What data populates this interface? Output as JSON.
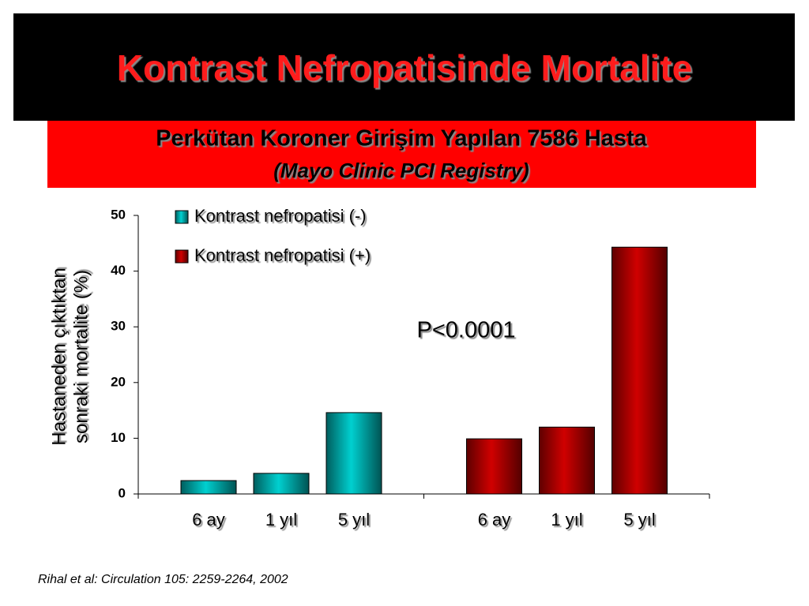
{
  "slide": {
    "title": "Kontrast Nefropatisinde Mortalite",
    "subtitle": "Perkütan Koroner Girişim Yapılan 7586 Hasta",
    "subtitle_note": "(Mayo Clinic PCI Registry)",
    "citation": "Rihal et al: Circulation 105: 2259-2264, 2002"
  },
  "chart_data": {
    "type": "bar",
    "y_label": [
      "Hastaneden çıktıktan",
      "sonraki mortalite (%)"
    ],
    "annotation": "P<0.0001",
    "categories": [
      "6 ay",
      "1 yıl",
      "5 yıl",
      "6 ay",
      "1 yıl",
      "5 yıl"
    ],
    "series": [
      {
        "name": "Kontrast nefropatisi (-)",
        "color": "#00d0d0",
        "values": [
          2.4,
          3.7,
          14.6,
          null,
          null,
          null
        ]
      },
      {
        "name": "Kontrast nefropatisi (+)",
        "color": "#d00000",
        "values": [
          null,
          null,
          null,
          9.9,
          12.0,
          44.3
        ]
      }
    ],
    "ylim": [
      0,
      50
    ],
    "yticks": [
      0,
      10,
      20,
      30,
      40,
      50
    ]
  }
}
